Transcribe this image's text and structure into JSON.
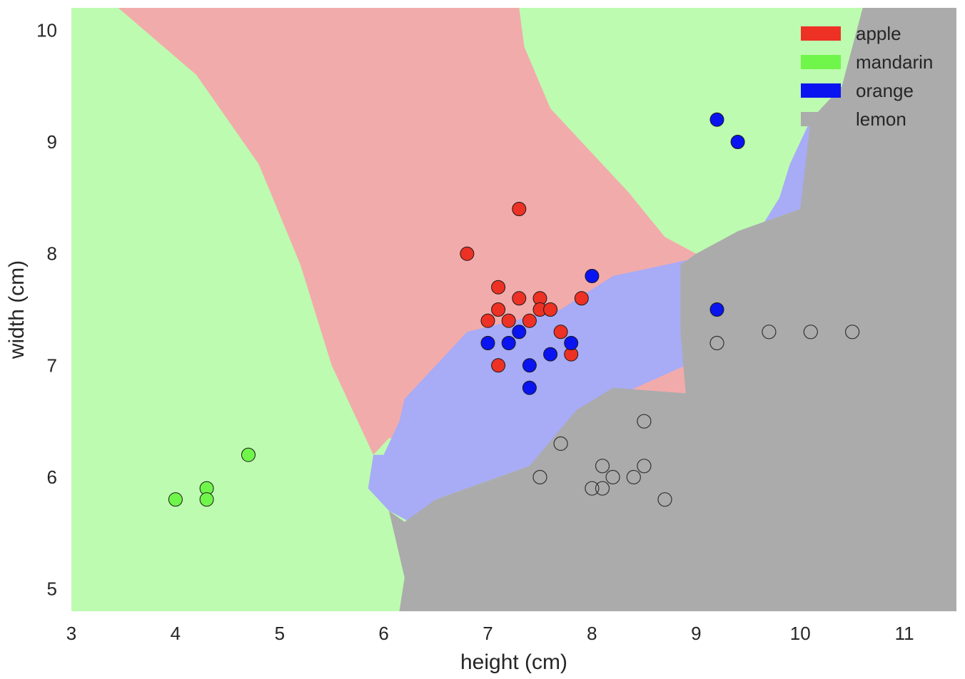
{
  "chart_data": {
    "type": "scatter",
    "xlabel": "height (cm)",
    "ylabel": "width (cm)",
    "xlim": [
      3,
      11.5
    ],
    "ylim": [
      4.8,
      10.2
    ],
    "xticks": [
      3,
      4,
      5,
      6,
      7,
      8,
      9,
      10,
      11
    ],
    "yticks": [
      5,
      6,
      7,
      8,
      9,
      10
    ],
    "grid": false,
    "legend_position": "top-right",
    "series": [
      {
        "name": "apple",
        "color": "#ed3124",
        "region_color": "#f2abab",
        "points": [
          [
            7.3,
            8.4
          ],
          [
            6.8,
            8.0
          ],
          [
            7.1,
            7.7
          ],
          [
            7.3,
            7.6
          ],
          [
            7.5,
            7.6
          ],
          [
            7.9,
            7.6
          ],
          [
            7.1,
            7.5
          ],
          [
            7.5,
            7.5
          ],
          [
            7.6,
            7.5
          ],
          [
            7.0,
            7.4
          ],
          [
            7.2,
            7.4
          ],
          [
            7.4,
            7.4
          ],
          [
            7.7,
            7.3
          ],
          [
            7.8,
            7.1
          ],
          [
            7.1,
            7.0
          ]
        ]
      },
      {
        "name": "mandarin",
        "color": "#70f54a",
        "region_color": "#bdfbb0",
        "points": [
          [
            4.0,
            5.8
          ],
          [
            4.3,
            5.9
          ],
          [
            4.3,
            5.8
          ],
          [
            4.7,
            6.2
          ]
        ]
      },
      {
        "name": "orange",
        "color": "#0a14f0",
        "region_color": "#a8abf6",
        "points": [
          [
            9.2,
            9.2
          ],
          [
            9.4,
            9.0
          ],
          [
            8.0,
            7.8
          ],
          [
            9.2,
            7.5
          ],
          [
            7.3,
            7.3
          ],
          [
            7.0,
            7.2
          ],
          [
            7.2,
            7.2
          ],
          [
            7.8,
            7.2
          ],
          [
            7.6,
            7.1
          ],
          [
            7.4,
            7.0
          ],
          [
            7.4,
            6.8
          ]
        ]
      },
      {
        "name": "lemon",
        "color": "#ababab",
        "region_color": "#ababab",
        "points": [
          [
            9.2,
            7.2
          ],
          [
            9.7,
            7.3
          ],
          [
            10.1,
            7.3
          ],
          [
            10.5,
            7.3
          ],
          [
            8.5,
            6.5
          ],
          [
            7.7,
            6.3
          ],
          [
            8.1,
            6.1
          ],
          [
            8.5,
            6.1
          ],
          [
            7.5,
            6.0
          ],
          [
            8.2,
            6.0
          ],
          [
            8.4,
            6.0
          ],
          [
            8.0,
            5.9
          ],
          [
            8.1,
            5.9
          ],
          [
            8.7,
            5.8
          ]
        ]
      }
    ],
    "decision_regions": {
      "apple": [
        [
          3.45,
          10.2
        ],
        [
          7.3,
          10.2
        ],
        [
          7.35,
          9.85
        ],
        [
          7.6,
          9.3
        ],
        [
          8.05,
          8.85
        ],
        [
          8.35,
          8.55
        ],
        [
          8.7,
          8.15
        ],
        [
          9.0,
          8.0
        ],
        [
          8.85,
          7.9
        ],
        [
          8.8,
          7.8
        ],
        [
          8.85,
          7.3
        ],
        [
          8.9,
          7.2
        ],
        [
          8.9,
          6.75
        ],
        [
          8.65,
          6.75
        ],
        [
          8.2,
          6.8
        ],
        [
          8.0,
          6.75
        ],
        [
          7.3,
          6.5
        ],
        [
          6.9,
          6.45
        ],
        [
          6.6,
          6.3
        ],
        [
          6.05,
          6.35
        ],
        [
          5.9,
          6.2
        ],
        [
          5.5,
          7.0
        ],
        [
          5.2,
          7.9
        ],
        [
          4.8,
          8.8
        ],
        [
          4.2,
          9.6
        ],
        [
          3.7,
          10.0
        ]
      ],
      "orange": [
        [
          7.3,
          10.2
        ],
        [
          10.6,
          10.2
        ],
        [
          10.35,
          9.65
        ],
        [
          10.1,
          9.2
        ],
        [
          10.1,
          8.6
        ],
        [
          10.0,
          8.4
        ],
        [
          9.4,
          8.2
        ],
        [
          9.2,
          8.0
        ],
        [
          8.2,
          7.8
        ],
        [
          7.7,
          7.5
        ],
        [
          6.8,
          7.3
        ],
        [
          6.2,
          6.7
        ],
        [
          6.15,
          6.5
        ],
        [
          6.0,
          6.2
        ],
        [
          5.9,
          6.2
        ],
        [
          5.85,
          5.9
        ],
        [
          6.05,
          5.7
        ],
        [
          6.25,
          5.6
        ],
        [
          6.5,
          5.8
        ],
        [
          7.4,
          6.1
        ],
        [
          7.7,
          6.4
        ],
        [
          8.0,
          6.6
        ],
        [
          8.3,
          6.75
        ],
        [
          8.9,
          7.0
        ],
        [
          9.0,
          7.2
        ],
        [
          9.0,
          7.6
        ],
        [
          9.2,
          7.9
        ],
        [
          9.6,
          8.2
        ],
        [
          9.8,
          8.5
        ],
        [
          9.9,
          8.8
        ],
        [
          10.1,
          9.2
        ],
        [
          10.35,
          9.65
        ],
        [
          10.6,
          10.2
        ]
      ],
      "lemon": [
        [
          6.15,
          4.8
        ],
        [
          11.5,
          4.8
        ],
        [
          11.5,
          10.2
        ],
        [
          10.6,
          10.2
        ],
        [
          10.4,
          9.5
        ],
        [
          10.1,
          9.2
        ],
        [
          10.0,
          8.4
        ],
        [
          9.4,
          8.2
        ],
        [
          9.0,
          8.0
        ],
        [
          8.85,
          7.9
        ],
        [
          8.85,
          7.3
        ],
        [
          8.9,
          6.75
        ],
        [
          8.2,
          6.8
        ],
        [
          7.85,
          6.6
        ],
        [
          7.4,
          6.1
        ],
        [
          6.5,
          5.8
        ],
        [
          6.2,
          5.6
        ],
        [
          6.05,
          5.7
        ],
        [
          6.2,
          5.1
        ]
      ]
    }
  }
}
